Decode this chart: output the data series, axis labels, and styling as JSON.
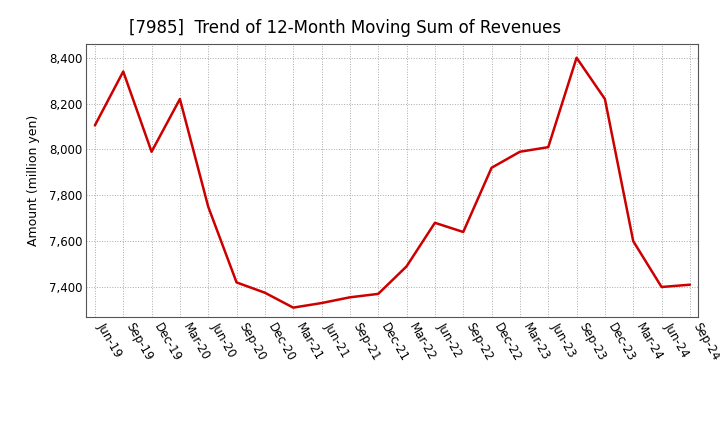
{
  "title": "[7985]  Trend of 12-Month Moving Sum of Revenues",
  "ylabel": "Amount (million yen)",
  "line_color": "#cc0000",
  "background_color": "#ffffff",
  "plot_bg_color": "#ffffff",
  "grid_color": "#aaaaaa",
  "labels": [
    "Jun-19",
    "Sep-19",
    "Dec-19",
    "Mar-20",
    "Jun-20",
    "Sep-20",
    "Dec-20",
    "Mar-21",
    "Jun-21",
    "Sep-21",
    "Dec-21",
    "Mar-22",
    "Jun-22",
    "Sep-22",
    "Dec-22",
    "Mar-23",
    "Jun-23",
    "Sep-23",
    "Dec-23",
    "Mar-24",
    "Jun-24",
    "Sep-24"
  ],
  "values": [
    8105,
    8340,
    7990,
    8220,
    7750,
    7420,
    7375,
    7310,
    7330,
    7355,
    7370,
    7490,
    7680,
    7640,
    7920,
    7990,
    8010,
    8400,
    8220,
    7600,
    7400,
    7410
  ],
  "ylim_min": 7270,
  "ylim_max": 8460,
  "yticks": [
    7400,
    7600,
    7800,
    8000,
    8200,
    8400
  ],
  "title_fontsize": 12,
  "axis_fontsize": 9,
  "tick_fontsize": 8.5
}
